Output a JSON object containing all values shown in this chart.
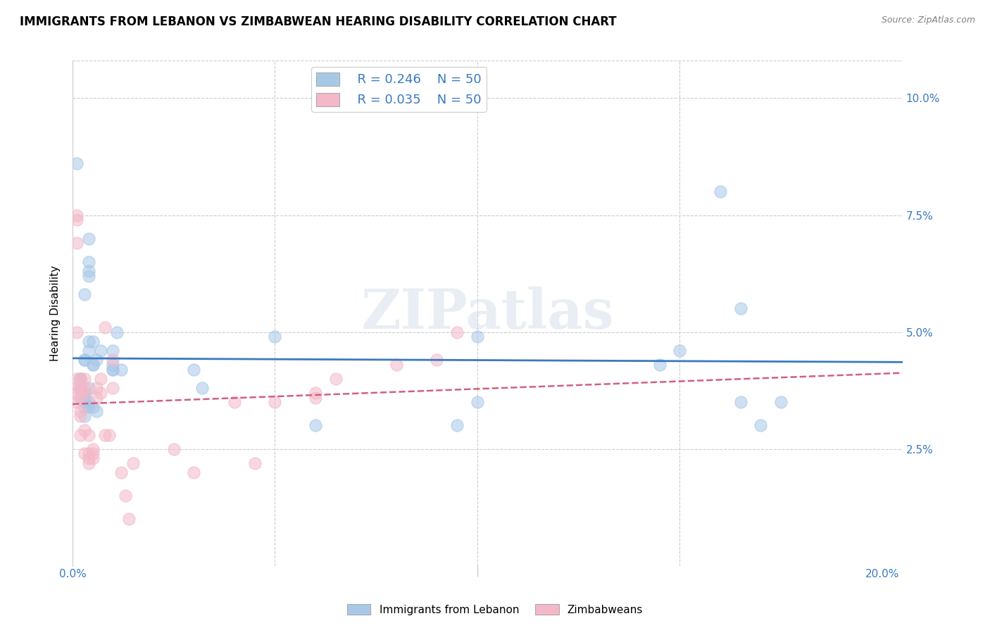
{
  "title": "IMMIGRANTS FROM LEBANON VS ZIMBABWEAN HEARING DISABILITY CORRELATION CHART",
  "source": "Source: ZipAtlas.com",
  "ylabel": "Hearing Disability",
  "right_yticks": [
    "10.0%",
    "7.5%",
    "5.0%",
    "2.5%"
  ],
  "right_ytick_vals": [
    0.1,
    0.075,
    0.05,
    0.025
  ],
  "ylim": [
    0.0,
    0.108
  ],
  "xlim": [
    0.0,
    0.205
  ],
  "legend_r1": "R = 0.246",
  "legend_n1": "N = 50",
  "legend_r2": "R = 0.035",
  "legend_n2": "N = 50",
  "label_blue": "Immigrants from Lebanon",
  "label_pink": "Zimbabweans",
  "color_blue": "#a8c8e8",
  "color_pink": "#f4b8c8",
  "trendline_blue_color": "#3a7abf",
  "trendline_pink_color": "#d06080",
  "watermark": "ZIPatlas",
  "blue_x": [
    0.002,
    0.002,
    0.001,
    0.002,
    0.003,
    0.002,
    0.003,
    0.003,
    0.002,
    0.003,
    0.004,
    0.004,
    0.003,
    0.004,
    0.004,
    0.003,
    0.004,
    0.004,
    0.003,
    0.003,
    0.004,
    0.004,
    0.005,
    0.004,
    0.005,
    0.005,
    0.006,
    0.005,
    0.006,
    0.007,
    0.01,
    0.011,
    0.01,
    0.01,
    0.012,
    0.01,
    0.03,
    0.032,
    0.05,
    0.06,
    0.095,
    0.1,
    0.1,
    0.145,
    0.15,
    0.16,
    0.165,
    0.17,
    0.175,
    0.165
  ],
  "blue_y": [
    0.038,
    0.04,
    0.086,
    0.038,
    0.035,
    0.036,
    0.034,
    0.032,
    0.04,
    0.037,
    0.065,
    0.062,
    0.058,
    0.07,
    0.063,
    0.044,
    0.048,
    0.035,
    0.044,
    0.036,
    0.046,
    0.034,
    0.043,
    0.038,
    0.043,
    0.034,
    0.033,
    0.048,
    0.044,
    0.046,
    0.046,
    0.05,
    0.043,
    0.042,
    0.042,
    0.042,
    0.042,
    0.038,
    0.049,
    0.03,
    0.03,
    0.049,
    0.035,
    0.043,
    0.046,
    0.08,
    0.055,
    0.03,
    0.035,
    0.035
  ],
  "pink_x": [
    0.001,
    0.001,
    0.001,
    0.001,
    0.001,
    0.001,
    0.001,
    0.001,
    0.002,
    0.002,
    0.002,
    0.002,
    0.002,
    0.002,
    0.003,
    0.003,
    0.003,
    0.003,
    0.003,
    0.004,
    0.004,
    0.004,
    0.004,
    0.005,
    0.005,
    0.005,
    0.006,
    0.006,
    0.007,
    0.007,
    0.008,
    0.008,
    0.009,
    0.01,
    0.01,
    0.012,
    0.013,
    0.014,
    0.015,
    0.025,
    0.03,
    0.04,
    0.045,
    0.05,
    0.06,
    0.06,
    0.065,
    0.08,
    0.09,
    0.095
  ],
  "pink_y": [
    0.037,
    0.04,
    0.075,
    0.074,
    0.069,
    0.05,
    0.038,
    0.035,
    0.036,
    0.033,
    0.032,
    0.038,
    0.04,
    0.028,
    0.037,
    0.038,
    0.04,
    0.029,
    0.024,
    0.028,
    0.024,
    0.023,
    0.022,
    0.025,
    0.024,
    0.023,
    0.036,
    0.038,
    0.04,
    0.037,
    0.028,
    0.051,
    0.028,
    0.044,
    0.038,
    0.02,
    0.015,
    0.01,
    0.022,
    0.025,
    0.02,
    0.035,
    0.022,
    0.035,
    0.037,
    0.036,
    0.04,
    0.043,
    0.044,
    0.05
  ],
  "grid_color": "#cccccc",
  "background_color": "#ffffff",
  "title_fontsize": 12,
  "axis_fontsize": 11,
  "xtick_show_vals": [
    0.0,
    0.2
  ],
  "xtick_show_labels": [
    "0.0%",
    "20.0%"
  ]
}
